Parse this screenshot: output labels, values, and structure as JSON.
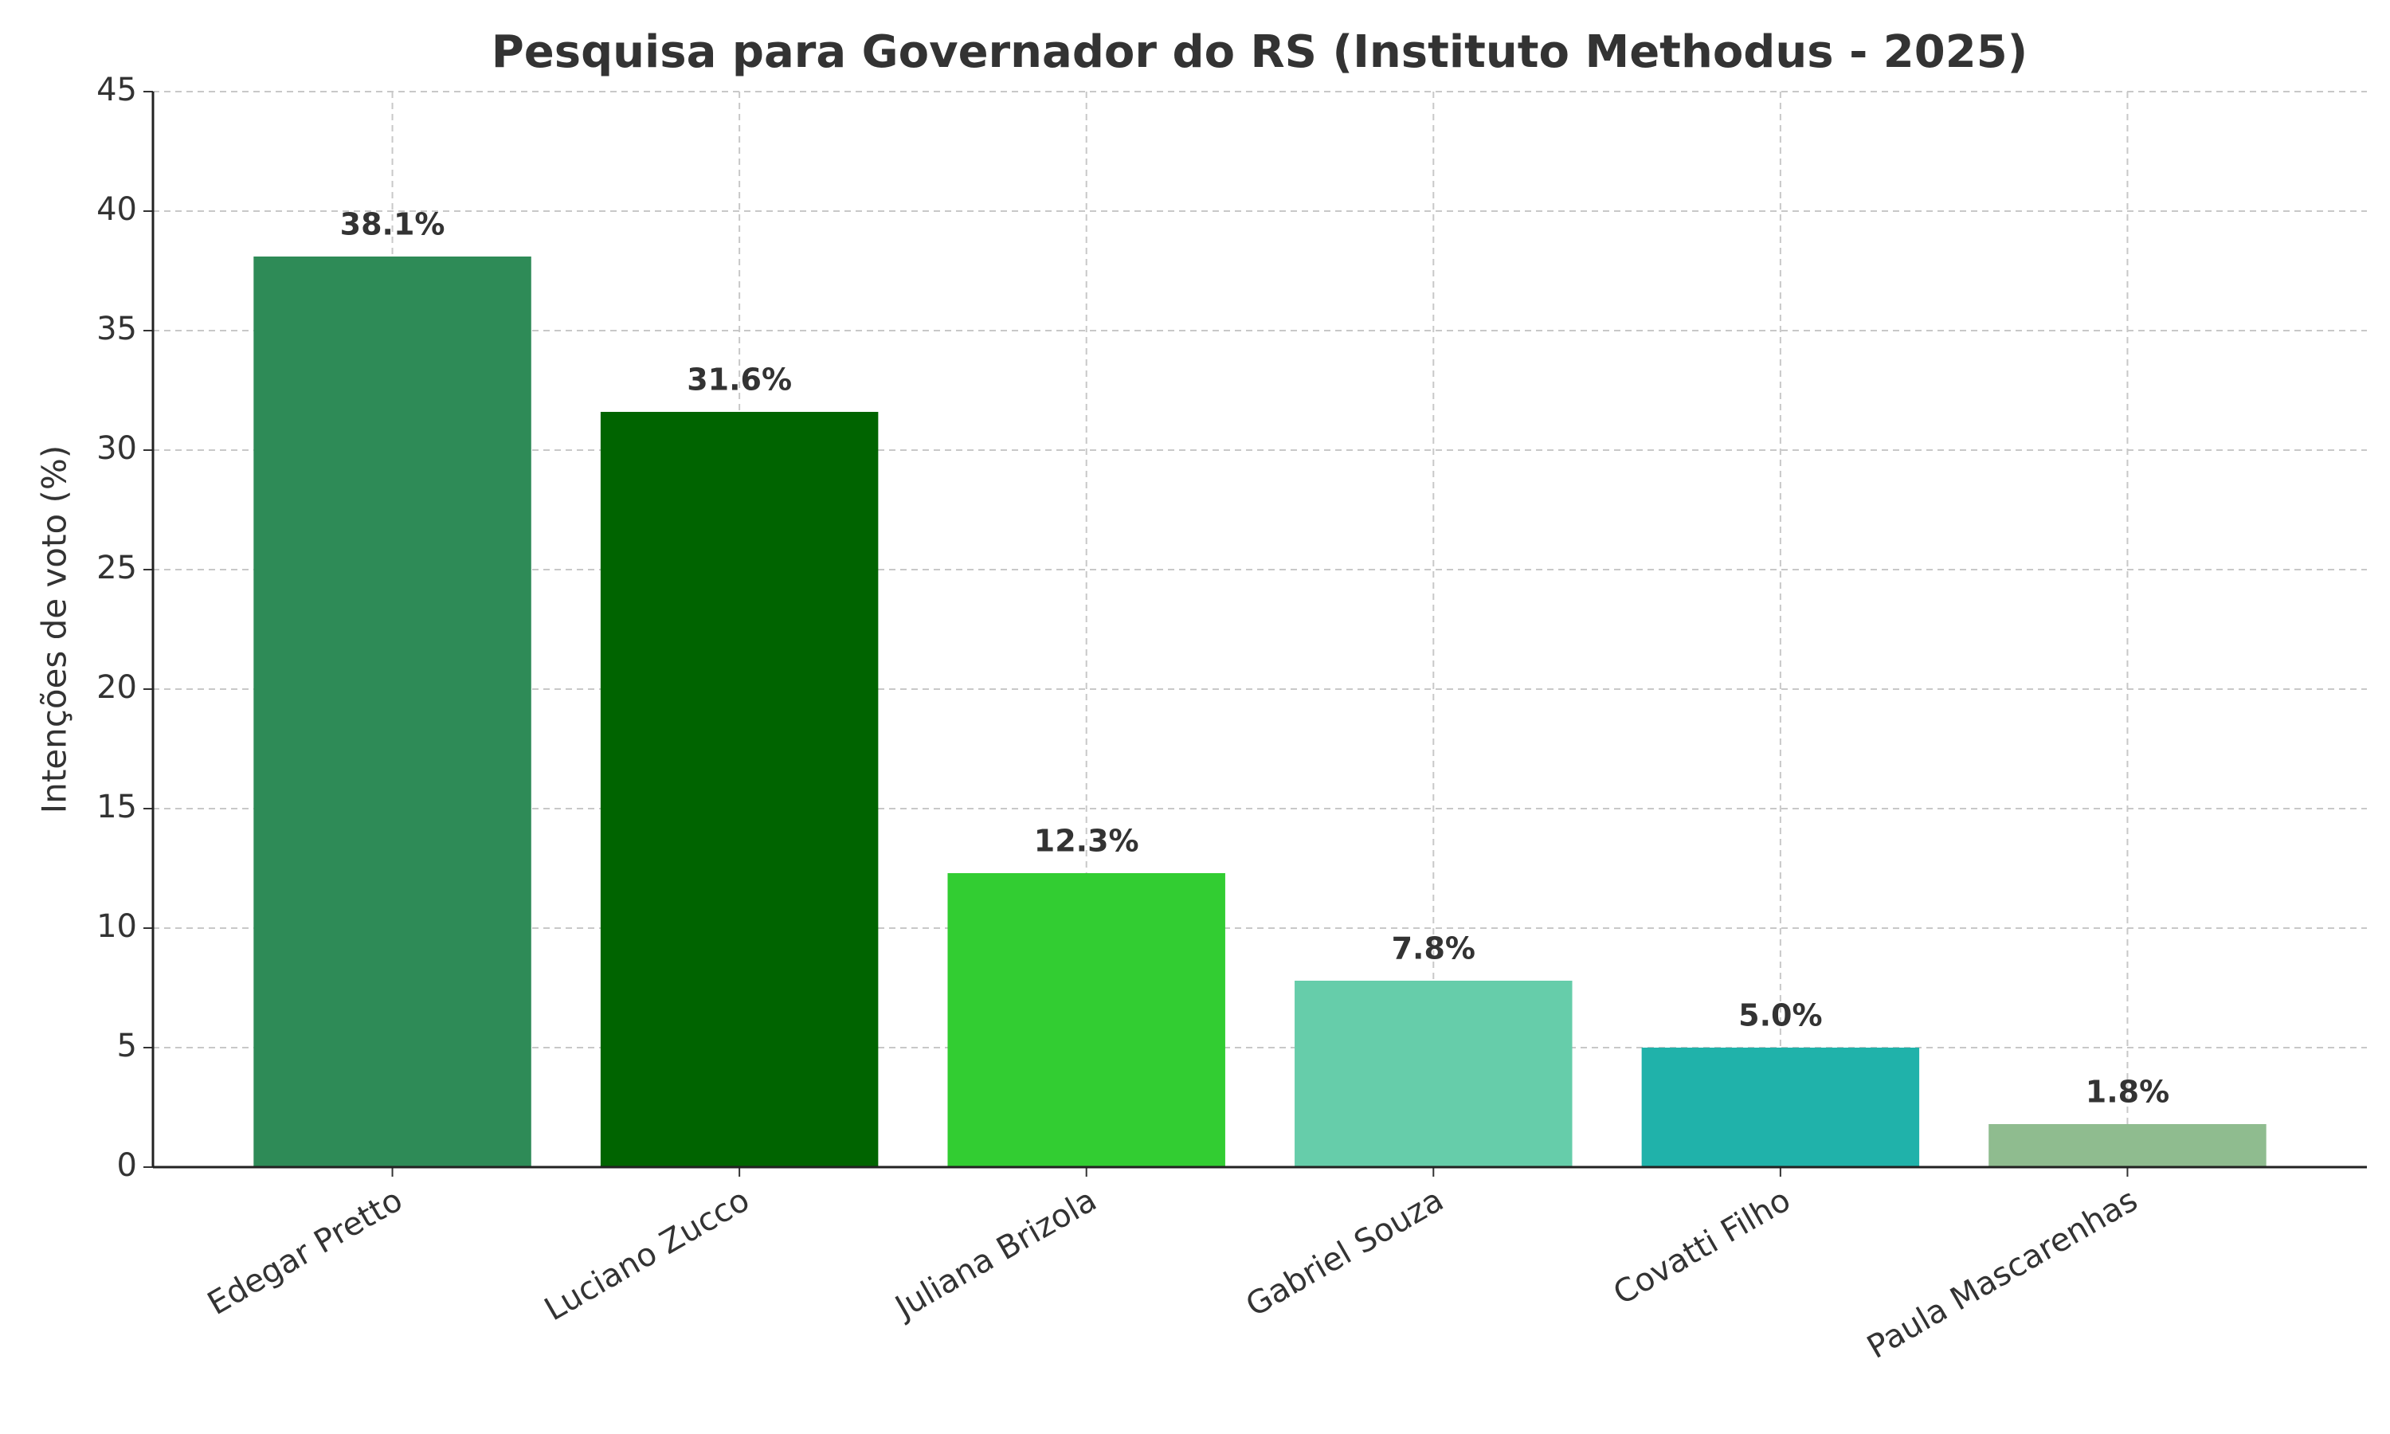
{
  "chart_data": {
    "type": "bar",
    "title": "Pesquisa para Governador do RS (Instituto Methodus - 2025)",
    "y_label": "Intenções de voto (%)",
    "categories": [
      "Edegar Pretto",
      "Luciano Zucco",
      "Juliana Brizola",
      "Gabriel Souza",
      "Covatti Filho",
      "Paula Mascarenhas"
    ],
    "values": [
      38.1,
      31.6,
      12.3,
      7.8,
      5.0,
      1.8
    ],
    "value_labels": [
      "38.1%",
      "31.6%",
      "12.3%",
      "7.8%",
      "5.0%",
      "1.8%"
    ],
    "colors": [
      "#2e8b57",
      "#006400",
      "#32cd32",
      "#66cdaa",
      "#20b2aa",
      "#8fbc8f"
    ],
    "ylim": [
      0,
      45
    ],
    "yticks": [
      0,
      5,
      10,
      15,
      20,
      25,
      30,
      35,
      40,
      45
    ],
    "grid": true
  }
}
